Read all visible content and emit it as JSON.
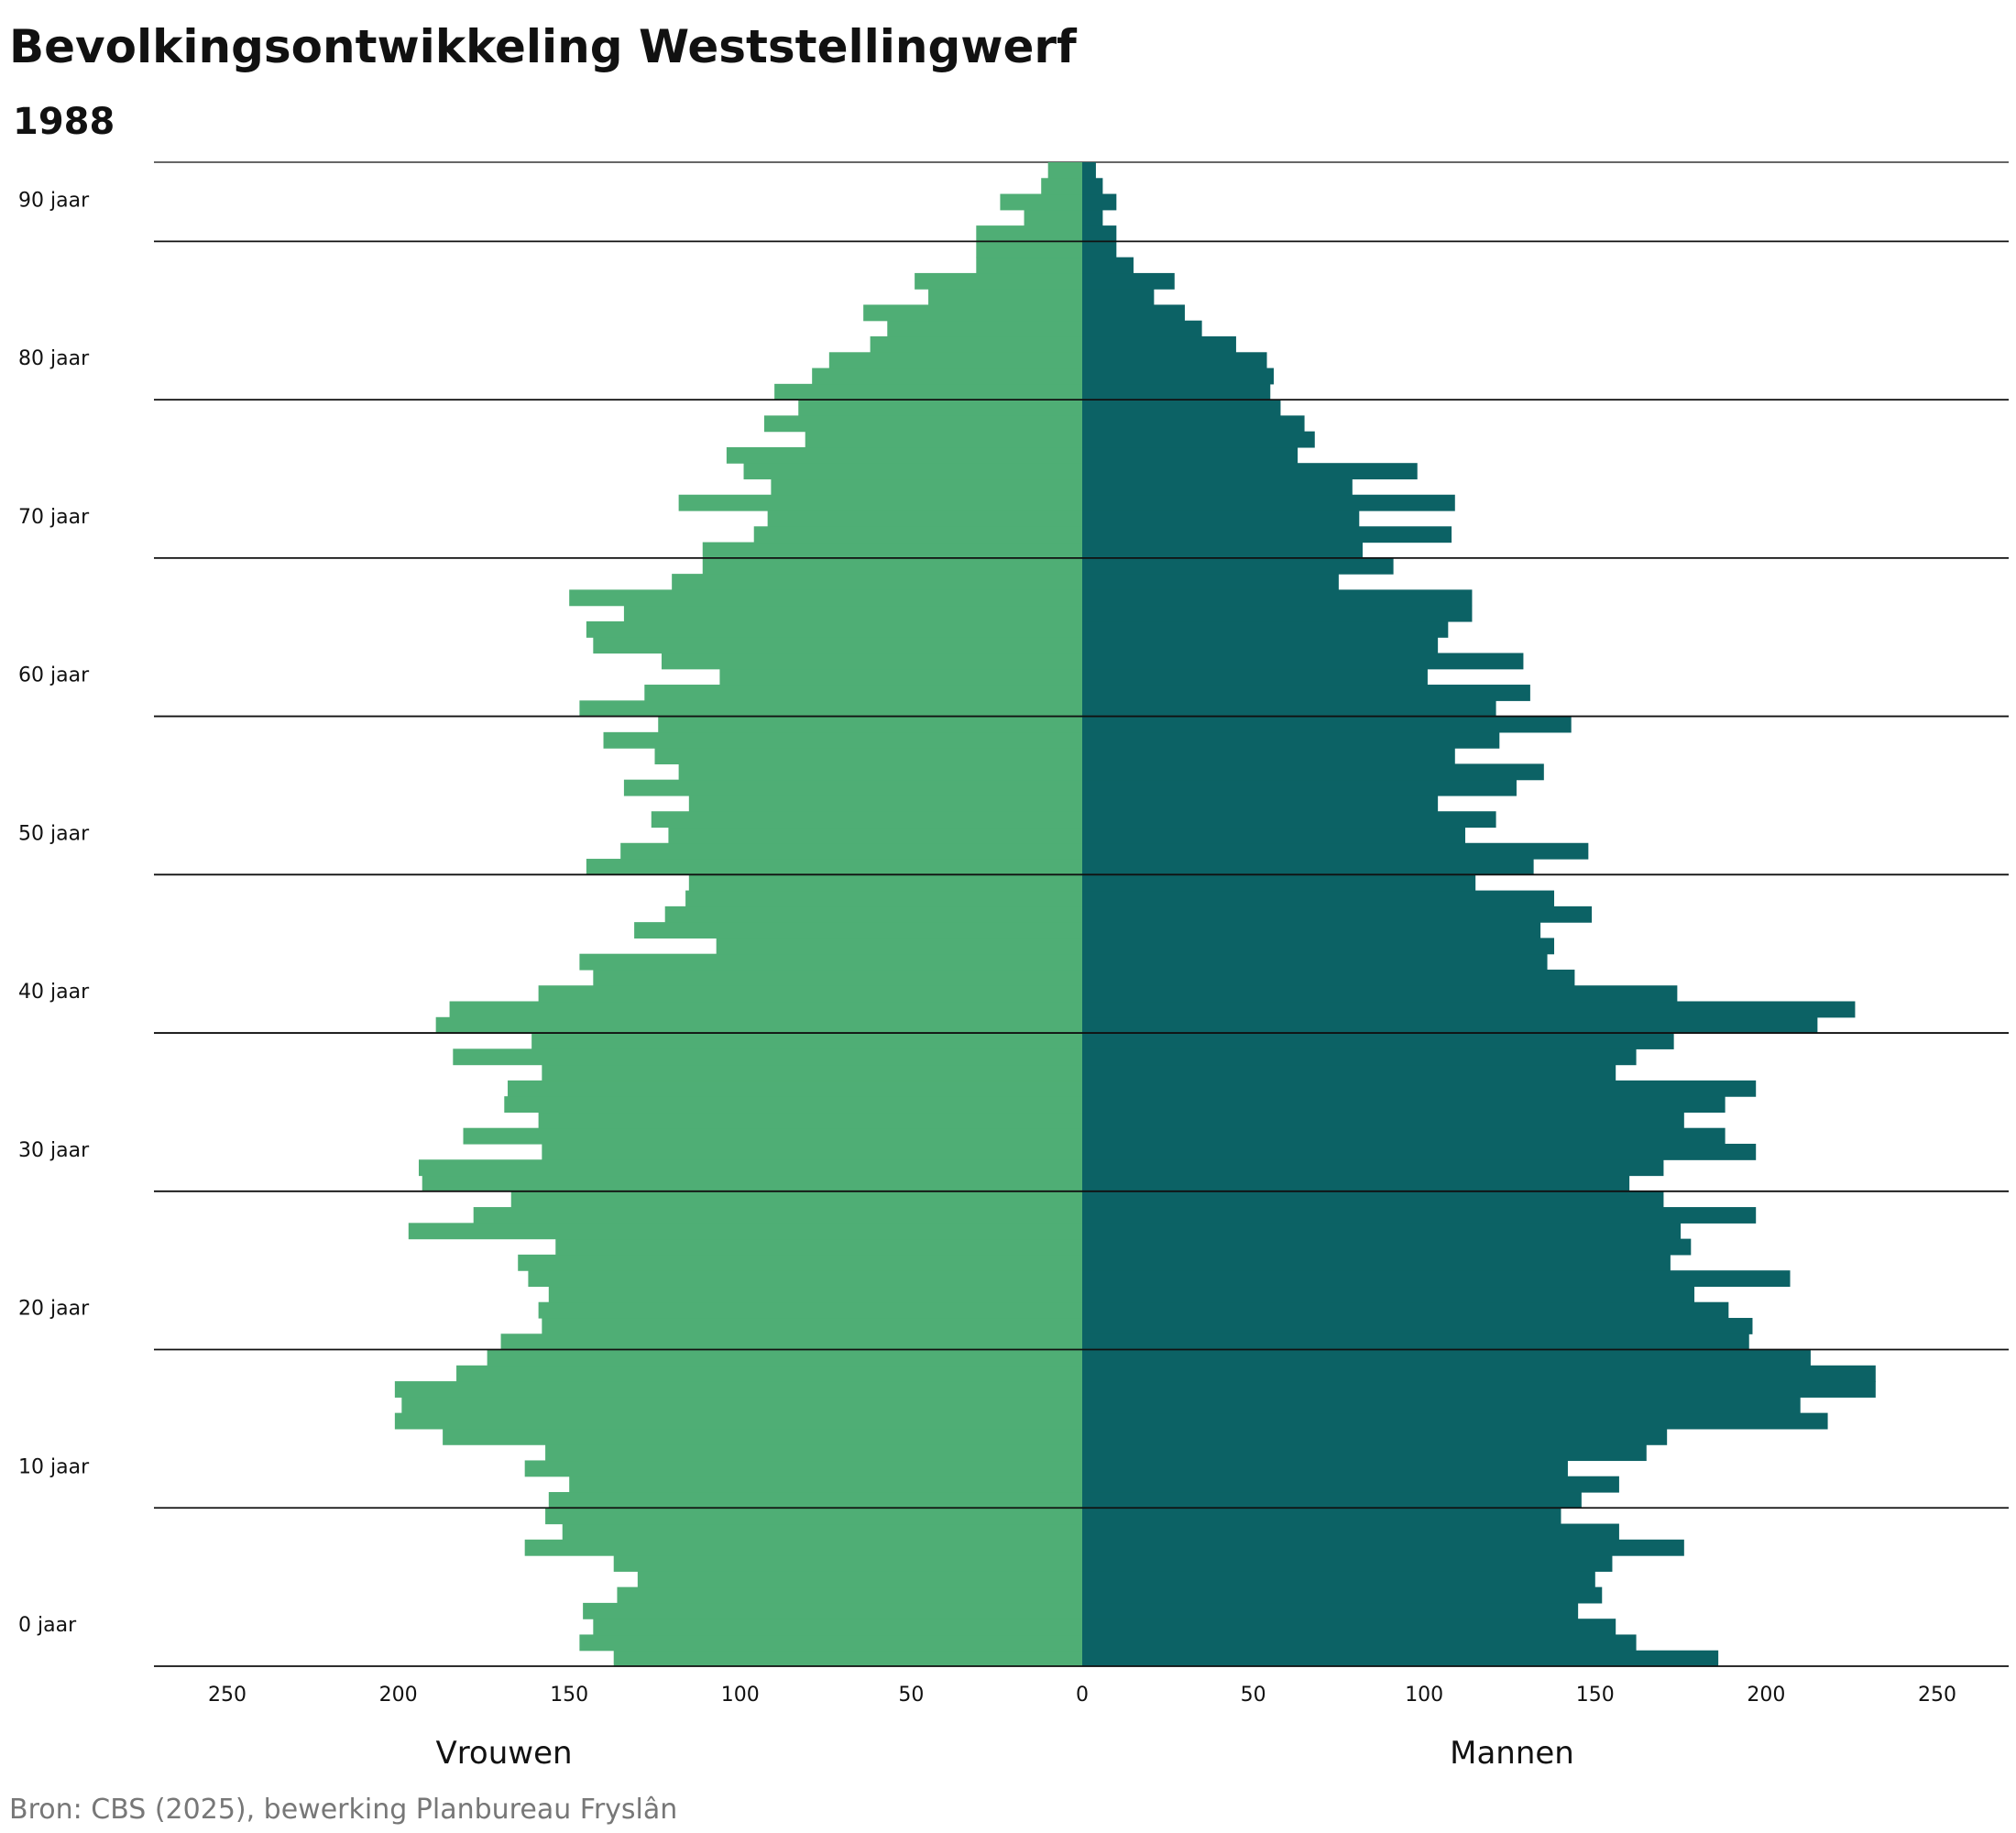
{
  "chart_data": {
    "type": "bar",
    "orientation": "horizontal-population-pyramid",
    "title": "Bevolkingsontwikkeling Weststellingwerf",
    "subtitle": "1988",
    "source": "Bron: CBS (2025), bewerking Planbureau Fryslân",
    "left_label": "Vrouwen",
    "right_label": "Mannen",
    "xlim": [
      -270,
      270
    ],
    "x_ticks": [
      -250,
      -200,
      -150,
      -100,
      -50,
      0,
      50,
      100,
      150,
      200,
      250
    ],
    "x_tick_labels": [
      "250",
      "200",
      "150",
      "100",
      "50",
      "0",
      "50",
      "100",
      "150",
      "200",
      "250"
    ],
    "y_ticks": [
      0,
      10,
      20,
      30,
      40,
      50,
      60,
      70,
      80,
      90
    ],
    "y_tick_labels": [
      "0 jaar",
      "10 jaar",
      "20 jaar",
      "30 jaar",
      "40 jaar",
      "50 jaar",
      "60 jaar",
      "70 jaar",
      "80 jaar",
      "90 jaar"
    ],
    "ages": [
      0,
      1,
      2,
      3,
      4,
      5,
      6,
      7,
      8,
      9,
      10,
      11,
      12,
      13,
      14,
      15,
      16,
      17,
      18,
      19,
      20,
      21,
      22,
      23,
      24,
      25,
      26,
      27,
      28,
      29,
      30,
      31,
      32,
      33,
      34,
      35,
      36,
      37,
      38,
      39,
      40,
      41,
      42,
      43,
      44,
      45,
      46,
      47,
      48,
      49,
      50,
      51,
      52,
      53,
      54,
      55,
      56,
      57,
      58,
      59,
      60,
      61,
      62,
      63,
      64,
      65,
      66,
      67,
      68,
      69,
      70,
      71,
      72,
      73,
      74,
      75,
      76,
      77,
      78,
      79,
      80,
      81,
      82,
      83,
      84,
      85,
      86,
      87,
      88,
      89,
      90,
      91,
      92,
      93,
      94
    ],
    "series": [
      {
        "name": "Vrouwen",
        "color": "#4fae75",
        "values": [
          137,
          147,
          143,
          146,
          136,
          130,
          137,
          163,
          152,
          157,
          156,
          150,
          163,
          157,
          187,
          201,
          199,
          201,
          183,
          174,
          170,
          158,
          159,
          156,
          162,
          165,
          154,
          197,
          178,
          167,
          193,
          194,
          158,
          181,
          159,
          169,
          168,
          158,
          184,
          161,
          189,
          185,
          159,
          143,
          147,
          107,
          131,
          122,
          116,
          115,
          145,
          135,
          121,
          126,
          115,
          134,
          118,
          125,
          140,
          124,
          147,
          128,
          106,
          123,
          143,
          145,
          134,
          150,
          120,
          111,
          111,
          96,
          92,
          118,
          91,
          99,
          104,
          81,
          93,
          83,
          90,
          79,
          74,
          62,
          57,
          64,
          45,
          49,
          31,
          31,
          31,
          17,
          24,
          12,
          10
        ]
      },
      {
        "name": "Mannen",
        "color": "#0c6265",
        "values": [
          186,
          162,
          156,
          145,
          152,
          150,
          155,
          176,
          157,
          140,
          146,
          157,
          142,
          165,
          171,
          218,
          210,
          232,
          232,
          213,
          195,
          196,
          189,
          179,
          207,
          172,
          178,
          175,
          197,
          170,
          160,
          170,
          197,
          188,
          176,
          188,
          197,
          156,
          162,
          173,
          215,
          226,
          174,
          144,
          136,
          138,
          134,
          149,
          138,
          115,
          132,
          148,
          112,
          121,
          104,
          127,
          135,
          109,
          122,
          143,
          121,
          131,
          101,
          129,
          104,
          107,
          114,
          114,
          75,
          91,
          82,
          108,
          81,
          109,
          79,
          98,
          63,
          68,
          65,
          58,
          55,
          56,
          54,
          45,
          35,
          30,
          21,
          27,
          15,
          10,
          10,
          6,
          10,
          6,
          4
        ]
      }
    ],
    "grid": "horizontal lines every 10 years"
  }
}
